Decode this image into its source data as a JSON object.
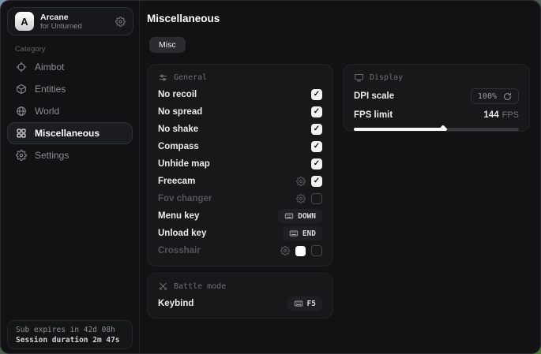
{
  "colors": {
    "window_bg": "#121215",
    "panel_bg": "#18181b",
    "accent": "#f5f5f5",
    "text_primary": "#ececee",
    "text_muted": "#8e8e93",
    "checkbox_checked_bg": "#f2f2f2"
  },
  "sidebar": {
    "brand": {
      "name": "Arcane",
      "subtitle": "for Unturned",
      "logo_letter": "A",
      "icon": "gear-icon"
    },
    "category_label": "Category",
    "items": [
      {
        "label": "Aimbot",
        "icon": "crosshair-icon",
        "selected": false
      },
      {
        "label": "Entities",
        "icon": "package-icon",
        "selected": false
      },
      {
        "label": "World",
        "icon": "globe-icon",
        "selected": false
      },
      {
        "label": "Miscellaneous",
        "icon": "grid-icon",
        "selected": true
      },
      {
        "label": "Settings",
        "icon": "gear-icon",
        "selected": false
      }
    ],
    "subscription": {
      "line1": "Sub expires in 42d 08h",
      "line2": "Session duration 2m 47s"
    }
  },
  "main": {
    "title": "Miscellaneous",
    "tabs": [
      {
        "label": "Misc",
        "active": true
      }
    ],
    "panels": {
      "general": {
        "title": "General",
        "icon": "sliders-icon",
        "rows": [
          {
            "label": "No recoil",
            "type": "checkbox",
            "checked": true
          },
          {
            "label": "No spread",
            "type": "checkbox",
            "checked": true
          },
          {
            "label": "No shake",
            "type": "checkbox",
            "checked": true
          },
          {
            "label": "Compass",
            "type": "checkbox",
            "checked": true
          },
          {
            "label": "Unhide map",
            "type": "checkbox",
            "checked": true
          },
          {
            "label": "Freecam",
            "type": "checkbox",
            "checked": true,
            "has_settings": true
          },
          {
            "label": "Fov changer",
            "type": "checkbox",
            "checked": false,
            "has_settings": true,
            "dimmed": true
          },
          {
            "label": "Menu key",
            "type": "keybind",
            "key": "DOWN",
            "icon": "keyboard-icon"
          },
          {
            "label": "Unload key",
            "type": "keybind",
            "key": "END",
            "icon": "keyboard-icon"
          },
          {
            "label": "Crosshair",
            "type": "checkbox",
            "checked": false,
            "has_settings": true,
            "color": "#ffffff",
            "dimmed": true
          }
        ]
      },
      "display": {
        "title": "Display",
        "icon": "monitor-icon",
        "dpi": {
          "label": "DPI scale",
          "value": "100%",
          "icon": "refresh-icon"
        },
        "fps": {
          "label": "FPS limit",
          "value": "144",
          "unit": "FPS",
          "slider_percent": 54
        }
      },
      "battle": {
        "title": "Battle mode",
        "icon": "swords-icon",
        "keybind": {
          "label": "Keybind",
          "key": "F5",
          "icon": "keyboard-icon"
        }
      }
    }
  }
}
